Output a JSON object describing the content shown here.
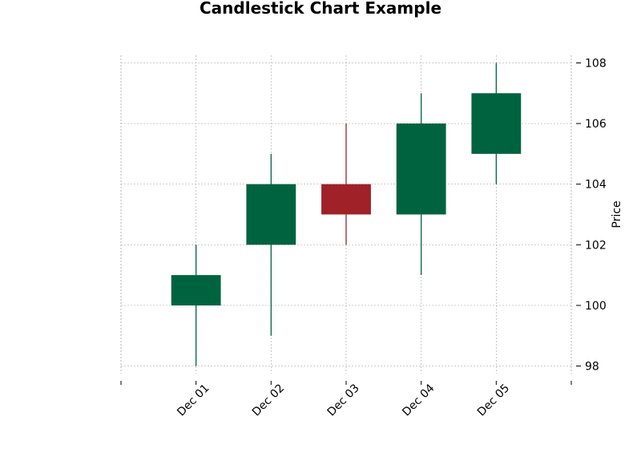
{
  "chart_data": {
    "type": "candlestick",
    "title": "Candlestick Chart Example",
    "xlabel": "",
    "ylabel": "Price",
    "categories": [
      "Dec 01",
      "Dec 02",
      "Dec 03",
      "Dec 04",
      "Dec 05"
    ],
    "ohlc": [
      {
        "date": "Dec 01",
        "open": 100,
        "high": 102,
        "low": 98,
        "close": 101
      },
      {
        "date": "Dec 02",
        "open": 102,
        "high": 105,
        "low": 99,
        "close": 104
      },
      {
        "date": "Dec 03",
        "open": 104,
        "high": 106,
        "low": 102,
        "close": 103
      },
      {
        "date": "Dec 04",
        "open": 103,
        "high": 107,
        "low": 101,
        "close": 106
      },
      {
        "date": "Dec 05",
        "open": 105,
        "high": 108,
        "low": 104,
        "close": 107
      }
    ],
    "yticks": [
      98,
      100,
      102,
      104,
      106,
      108
    ],
    "ylim": [
      97.75,
      108.25
    ],
    "y_axis_side": "right",
    "grid": true,
    "colors": {
      "up": "#006340",
      "down": "#A02128",
      "grid": "#b0b0b0"
    }
  }
}
